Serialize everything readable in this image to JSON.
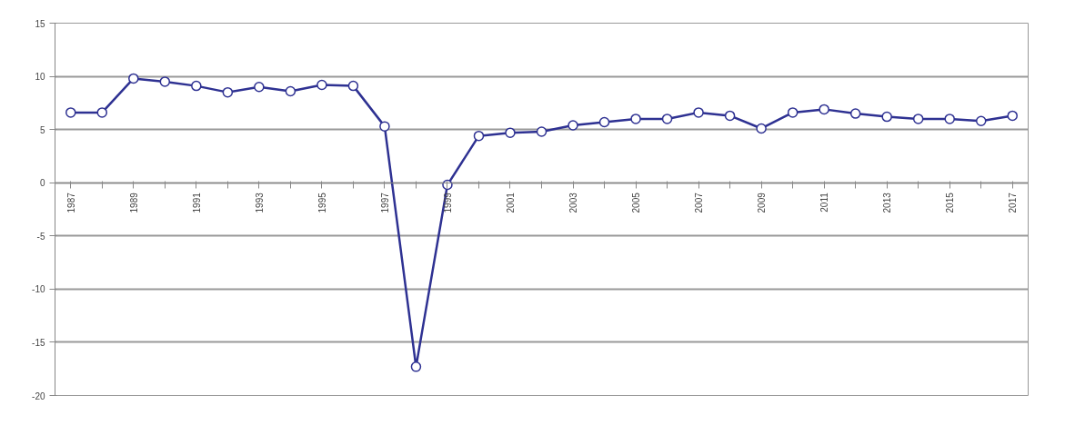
{
  "chart_data": {
    "type": "line",
    "categories": [
      "1987",
      null,
      "1989",
      null,
      "1991",
      null,
      "1993",
      null,
      "1995",
      null,
      "1997",
      null,
      "1999",
      null,
      "2001",
      null,
      "2003",
      null,
      "2005",
      null,
      "2007",
      null,
      "2009",
      null,
      "2011",
      null,
      "2013",
      null,
      "2015",
      null,
      "2017"
    ],
    "series": [
      {
        "color": "#2e3192",
        "values": [
          6.6,
          6.6,
          9.8,
          9.5,
          9.1,
          8.5,
          9.0,
          8.6,
          9.2,
          9.1,
          5.3,
          -17.3,
          -0.2,
          4.4,
          4.7,
          4.8,
          5.4,
          5.7,
          6.0,
          6.0,
          6.6,
          6.3,
          5.1,
          6.6,
          6.9,
          6.5,
          6.2,
          6.0,
          6.0,
          5.8,
          6.3
        ]
      }
    ],
    "ylim": [
      -20,
      15
    ],
    "yticks": [
      -20,
      -15,
      -10,
      -5,
      0,
      5,
      10,
      15
    ],
    "grid": "y",
    "marker": "circle",
    "line_style": "solid"
  }
}
